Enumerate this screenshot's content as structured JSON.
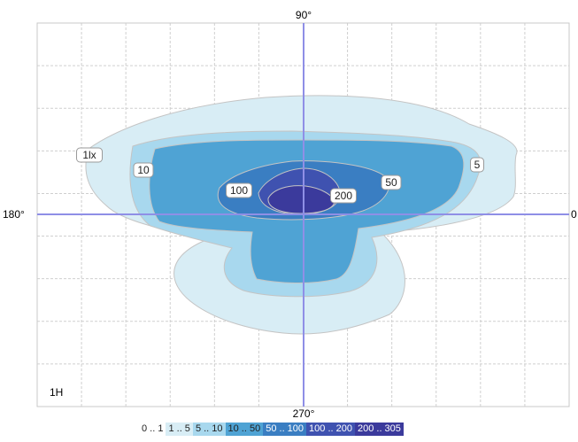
{
  "chart_data": {
    "type": "heatmap",
    "title": "",
    "xlabel": "",
    "ylabel": "",
    "angle_labels": {
      "top": "90°",
      "left": "180°",
      "right": "0",
      "bottom": "270°"
    },
    "scale_label": "1H",
    "grid": true,
    "contour_labels": [
      {
        "text": "1lx",
        "level": 1
      },
      {
        "text": "5",
        "level": 5
      },
      {
        "text": "10",
        "level": 10
      },
      {
        "text": "50",
        "level": 50
      },
      {
        "text": "100",
        "level": 100
      },
      {
        "text": "200",
        "level": 200
      }
    ],
    "bands": [
      {
        "label": "0 .. 1",
        "min": 0,
        "max": 1,
        "color": "#ffffff"
      },
      {
        "label": "1 .. 5",
        "min": 1,
        "max": 5,
        "color": "#d8edf5"
      },
      {
        "label": "5 .. 10",
        "min": 5,
        "max": 10,
        "color": "#a8d8ee"
      },
      {
        "label": "10 .. 50",
        "min": 10,
        "max": 50,
        "color": "#4fa3d4"
      },
      {
        "label": "50 .. 100",
        "min": 50,
        "max": 100,
        "color": "#3a7ec2"
      },
      {
        "label": "100 .. 200",
        "min": 100,
        "max": 200,
        "color": "#3f52b0"
      },
      {
        "label": "200 .. 305",
        "min": 200,
        "max": 305,
        "color": "#3b3a9c"
      }
    ],
    "legend_position": "bottom-center"
  }
}
